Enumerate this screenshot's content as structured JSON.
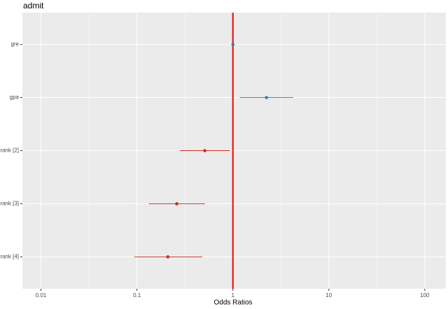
{
  "chart_data": {
    "type": "forest",
    "title": "admit",
    "x_label": "Odds Ratios",
    "categories": [
      "gre",
      "gpa",
      "rank [2]",
      "rank [3]",
      "rank [4]"
    ],
    "values": [
      1.002,
      2.24,
      0.51,
      0.26,
      0.21
    ],
    "lower": [
      0.999,
      1.18,
      0.28,
      0.133,
      0.094
    ],
    "upper": [
      1.004,
      4.25,
      0.935,
      0.51,
      0.48
    ],
    "xlim": [
      0.0064,
      166
    ],
    "xticks": [
      0.01,
      0.1,
      1,
      10,
      100
    ],
    "log_x": true,
    "reference_line": 1,
    "reference_color": "#e8190f",
    "color_above": "#377eb8",
    "color_below": "#cc2a1f",
    "grid": true
  }
}
